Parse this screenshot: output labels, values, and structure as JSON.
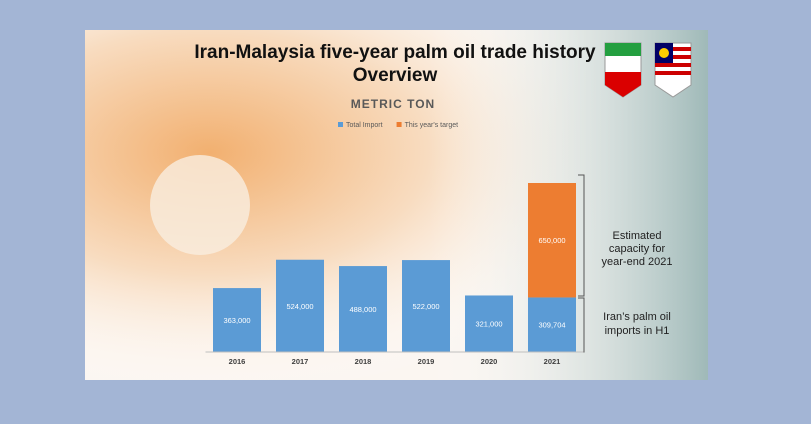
{
  "chart_data": {
    "type": "bar",
    "stacked": true,
    "title": [
      "Iran-Malaysia five-year palm oil trade history",
      "Overview"
    ],
    "subtitle": "METRIC TON",
    "categories": [
      "2016",
      "2017",
      "2018",
      "2019",
      "2020",
      "2021"
    ],
    "series": [
      {
        "name": "Total Import",
        "color": "#5b9bd5",
        "values": [
          363000,
          524000,
          488000,
          522000,
          321000,
          309704
        ],
        "value_labels": [
          "363,000",
          "524,000",
          "488,000",
          "522,000",
          "321,000",
          "309,704"
        ]
      },
      {
        "name": "This year's target",
        "color": "#ed7d31",
        "values": [
          null,
          null,
          null,
          null,
          null,
          650000
        ],
        "value_labels": [
          null,
          null,
          null,
          null,
          null,
          "650,000"
        ]
      }
    ],
    "annotations": [
      [
        "Estimated",
        "capacity for",
        "year-end 2021"
      ],
      [
        "Iran’s palm oil",
        "imports in H1"
      ]
    ],
    "legend": "top"
  }
}
